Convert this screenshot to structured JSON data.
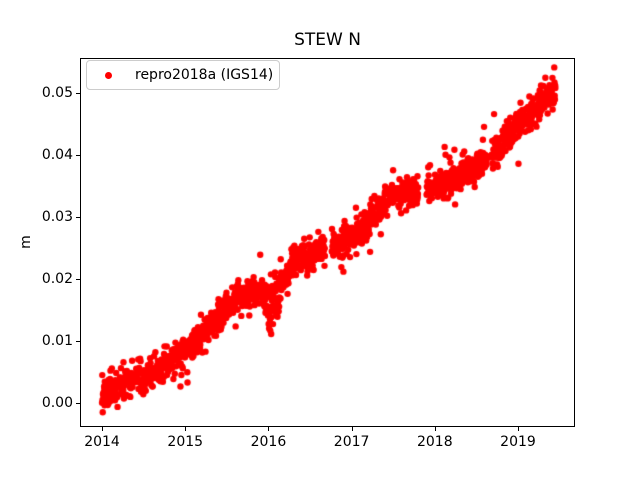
{
  "figure": {
    "background": "#ffffff",
    "axes_color": "#000000"
  },
  "chart_data": {
    "type": "scatter",
    "title": "STEW N",
    "xlabel": "",
    "ylabel": "m",
    "grid": false,
    "xlim": [
      2013.735,
      2019.685
    ],
    "ylim": [
      -0.0039,
      0.0557
    ],
    "xticks": [
      {
        "v": 2014,
        "label": "2014"
      },
      {
        "v": 2015,
        "label": "2015"
      },
      {
        "v": 2016,
        "label": "2016"
      },
      {
        "v": 2017,
        "label": "2017"
      },
      {
        "v": 2018,
        "label": "2018"
      },
      {
        "v": 2019,
        "label": "2019"
      }
    ],
    "yticks": [
      {
        "v": 0.0,
        "label": "0.00"
      },
      {
        "v": 0.01,
        "label": "0.01"
      },
      {
        "v": 0.02,
        "label": "0.02"
      },
      {
        "v": 0.03,
        "label": "0.03"
      },
      {
        "v": 0.04,
        "label": "0.04"
      },
      {
        "v": 0.05,
        "label": "0.05"
      }
    ],
    "legend": {
      "label": "repro2018a (IGS14)",
      "location": "upper left",
      "frame_color": "#cccccc",
      "marker": "dot"
    },
    "series": [
      {
        "name": "repro2018a (IGS14)",
        "color": "#ff0000",
        "marker": "circle",
        "marker_radius_px": 3.2,
        "x_start": 2014.0,
        "x_end": 2019.45,
        "samples_per_year": 365,
        "dropout_fraction": 0.06,
        "noise_std": 0.0011,
        "outlier_fraction": 0.08,
        "outlier_scale": 2.2,
        "seed": 20180314,
        "trend_anchors": [
          [
            2014.0,
            0.0008
          ],
          [
            2014.25,
            0.0035
          ],
          [
            2014.55,
            0.0042
          ],
          [
            2015.0,
            0.0085
          ],
          [
            2015.35,
            0.013
          ],
          [
            2015.65,
            0.017
          ],
          [
            2015.95,
            0.018
          ],
          [
            2016.02,
            0.0165
          ],
          [
            2016.1,
            0.0185
          ],
          [
            2016.3,
            0.0225
          ],
          [
            2016.6,
            0.0245
          ],
          [
            2017.0,
            0.0265
          ],
          [
            2017.2,
            0.0285
          ],
          [
            2017.42,
            0.033
          ],
          [
            2017.6,
            0.034
          ],
          [
            2017.95,
            0.0345
          ],
          [
            2018.25,
            0.036
          ],
          [
            2018.6,
            0.0392
          ],
          [
            2019.0,
            0.0445
          ],
          [
            2019.45,
            0.0508
          ]
        ],
        "noisy_periods": [
          {
            "from": 2015.93,
            "to": 2016.15,
            "extra_std": 0.0016,
            "bias": -0.0008
          }
        ],
        "gaps": [
          [
            2014.37,
            2014.41
          ],
          [
            2016.68,
            2016.76
          ],
          [
            2017.8,
            2017.9
          ],
          [
            2018.63,
            2018.68
          ]
        ]
      }
    ]
  }
}
